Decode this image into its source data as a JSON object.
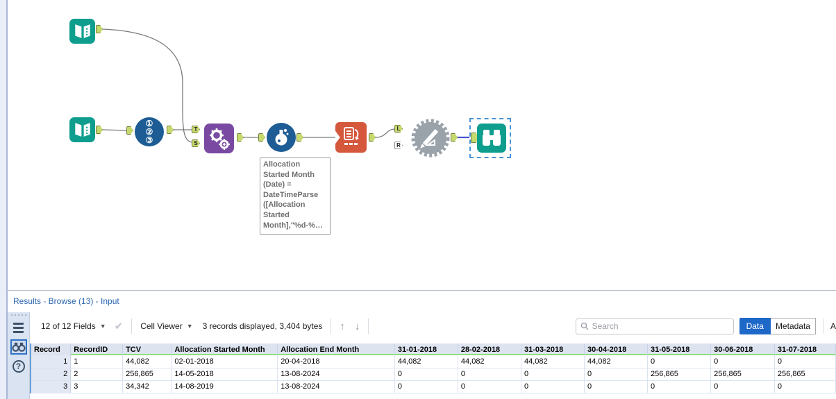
{
  "colors": {
    "tool_teal": "#0f9e8e",
    "tool_blue": "#1d5c94",
    "tool_purple": "#7a4aa3",
    "tool_orange": "#d5573c",
    "tool_gray": "#9aa2aa",
    "anchor_green": "#c6d96f",
    "wire_gray": "#7a7a7a",
    "wire_selected_blue": "#4553cf",
    "selection_dash_blue": "#4a94d8",
    "accent_blue": "#1e68c8",
    "header_underline_green": "#8ee07d",
    "title_blue": "#2c67b1"
  },
  "canvas": {
    "anchors": {
      "append_top": "T",
      "append_bottom": "S",
      "macro_left": "L",
      "macro_right": "R"
    },
    "annotation_lines": [
      "Allocation",
      "Started Month",
      "(Date) =",
      "DateTimeParse",
      "([Allocation",
      "Started",
      "Month],\"%d-%…"
    ]
  },
  "results": {
    "title": "Results - Browse (13) - Input",
    "toolbar": {
      "fields_summary": "12 of 12 Fields",
      "cell_viewer_label": "Cell Viewer",
      "records_summary": "3 records displayed, 3,404 bytes",
      "search_placeholder": "Search",
      "data_label": "Data",
      "metadata_label": "Metadata",
      "actions_clipped_label": "A"
    },
    "table": {
      "columns": [
        "Record",
        "RecordID",
        "TCV",
        "Allocation Started Month",
        "Allocation End Month",
        "31-01-2018",
        "28-02-2018",
        "31-03-2018",
        "30-04-2018",
        "31-05-2018",
        "30-06-2018",
        "31-07-2018"
      ],
      "rows": [
        [
          "1",
          "1",
          "44,082",
          "02-01-2018",
          "20-04-2018",
          "44,082",
          "44,082",
          "44,082",
          "44,082",
          "0",
          "0",
          "0"
        ],
        [
          "2",
          "2",
          "256,865",
          "14-05-2018",
          "13-08-2024",
          "0",
          "0",
          "0",
          "0",
          "256,865",
          "256,865",
          "256,865"
        ],
        [
          "3",
          "3",
          "34,342",
          "14-08-2019",
          "13-08-2024",
          "0",
          "0",
          "0",
          "0",
          "0",
          "0",
          "0"
        ]
      ]
    }
  }
}
